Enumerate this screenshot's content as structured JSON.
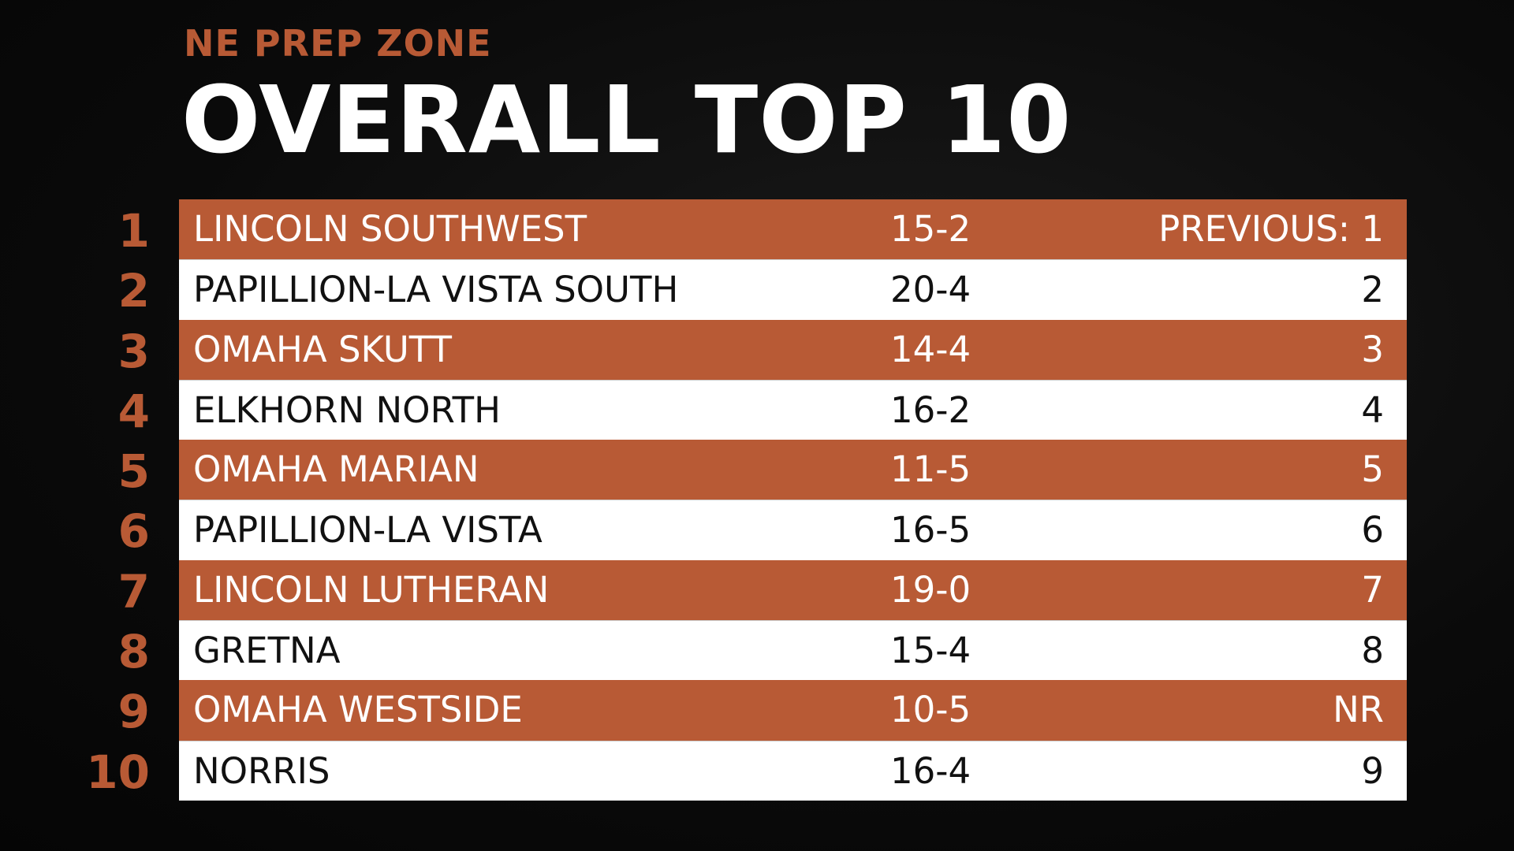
{
  "header": {
    "kicker": "NE PREP ZONE",
    "title": "OVERALL TOP 10"
  },
  "table": {
    "rows": [
      {
        "rank": "1",
        "team": "LINCOLN SOUTHWEST",
        "record": "15-2",
        "previous": "PREVIOUS: 1"
      },
      {
        "rank": "2",
        "team": "PAPILLION-LA VISTA SOUTH",
        "record": "20-4",
        "previous": "2"
      },
      {
        "rank": "3",
        "team": "OMAHA SKUTT",
        "record": "14-4",
        "previous": "3"
      },
      {
        "rank": "4",
        "team": "ELKHORN NORTH",
        "record": "16-2",
        "previous": "4"
      },
      {
        "rank": "5",
        "team": "OMAHA MARIAN",
        "record": "11-5",
        "previous": "5"
      },
      {
        "rank": "6",
        "team": "PAPILLION-LA VISTA",
        "record": "16-5",
        "previous": "6"
      },
      {
        "rank": "7",
        "team": "LINCOLN LUTHERAN",
        "record": "19-0",
        "previous": "7"
      },
      {
        "rank": "8",
        "team": "GRETNA",
        "record": "15-4",
        "previous": "8"
      },
      {
        "rank": "9",
        "team": "OMAHA WESTSIDE",
        "record": "10-5",
        "previous": "NR"
      },
      {
        "rank": "10",
        "team": "NORRIS",
        "record": "16-4",
        "previous": "9"
      }
    ]
  }
}
